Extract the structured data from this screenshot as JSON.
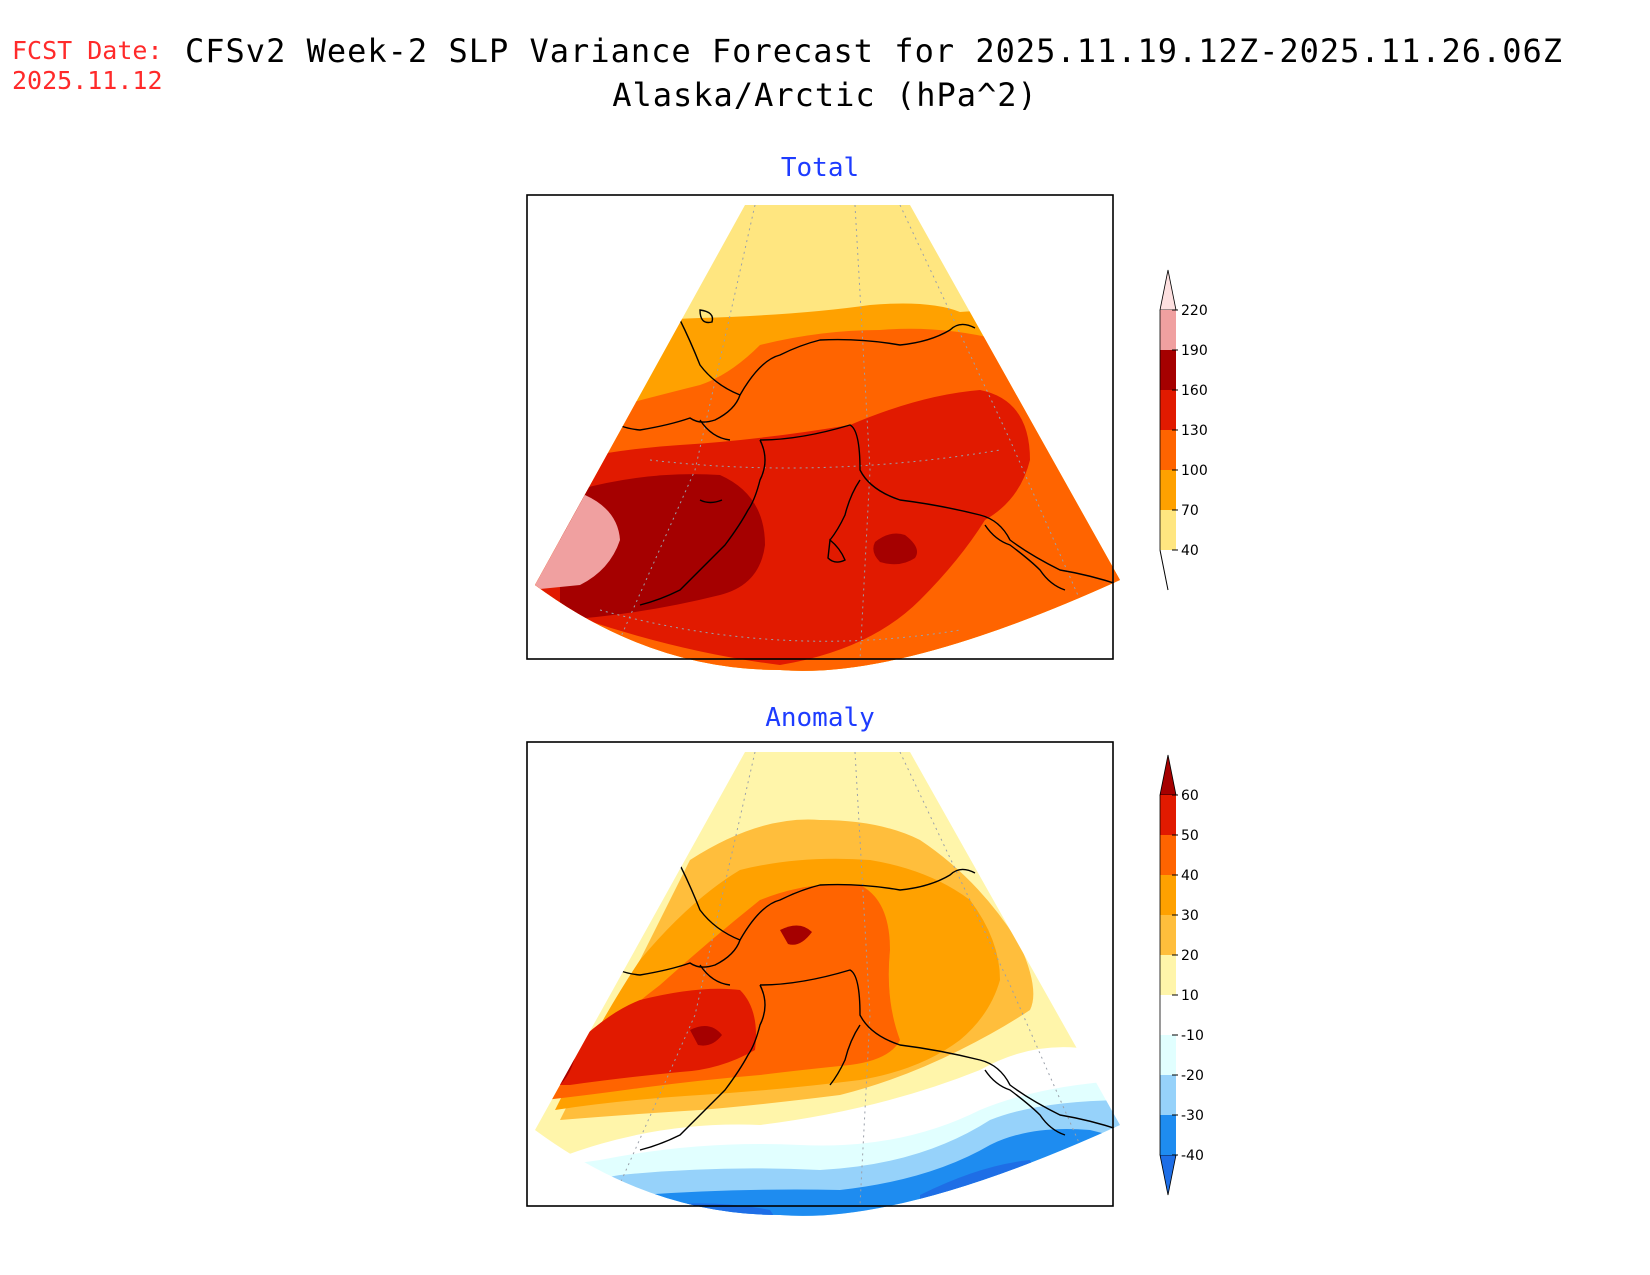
{
  "header": {
    "fcst_label": "FCST Date:",
    "fcst_date": "2025.11.12",
    "title_line1": "CFSv2 Week-2 SLP Variance Forecast for 2025.11.19.12Z-2025.11.26.06Z",
    "title_line2": "Alaska/Arctic (hPa^2)"
  },
  "panels": {
    "total": {
      "title": "Total"
    },
    "anomaly": {
      "title": "Anomaly"
    }
  },
  "colorbars": {
    "total": {
      "labels": [
        "40",
        "70",
        "100",
        "130",
        "160",
        "190",
        "220"
      ],
      "colors": [
        "#ffe680",
        "#ffa100",
        "#ff6400",
        "#e11a00",
        "#a50000",
        "#f0a0a0",
        "#fde0e0"
      ]
    },
    "anomaly": {
      "labels": [
        "-40",
        "-30",
        "-20",
        "-10",
        "10",
        "20",
        "30",
        "40",
        "50",
        "60"
      ],
      "colors": [
        "#1e6ee6",
        "#1e8cf0",
        "#96d2fa",
        "#e1ffff",
        "#ffffff",
        "#fff5aa",
        "#ffbe3c",
        "#ffa100",
        "#ff6400",
        "#e11a00",
        "#a50000"
      ]
    }
  }
}
